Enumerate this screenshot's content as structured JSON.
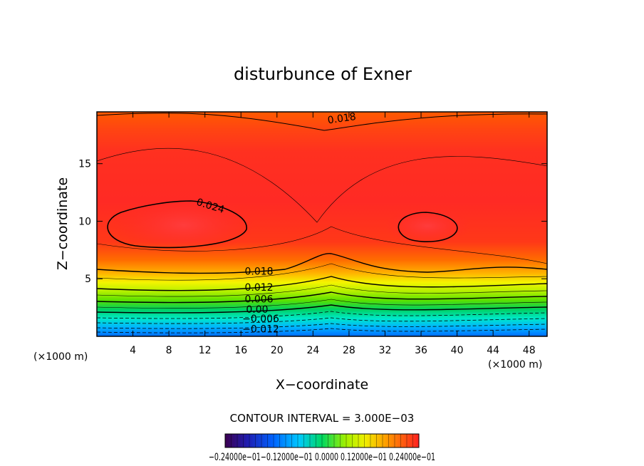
{
  "chart_data": {
    "type": "contour",
    "title": "disturbunce of Exner",
    "xlabel": "X−coordinate",
    "ylabel": "Z−coordinate",
    "x_unit": "(×1000 m)",
    "y_unit": "(×1000 m)",
    "xlim": [
      0,
      50
    ],
    "ylim": [
      0,
      19.5
    ],
    "x_ticks": [
      4,
      8,
      12,
      16,
      20,
      24,
      28,
      32,
      36,
      40,
      44,
      48
    ],
    "y_ticks": [
      5,
      10,
      15
    ],
    "x_tick_labels": [
      "4",
      "8",
      "12",
      "16",
      "20",
      "24",
      "28",
      "32",
      "36",
      "40",
      "44",
      "48"
    ],
    "y_tick_labels": [
      "5",
      "10",
      "15"
    ],
    "contour_interval_text": "CONTOUR INTERVAL = 3.000E−03",
    "contour_interval": 0.003,
    "contour_labels": [
      {
        "text": "0.018",
        "x": 27.2,
        "z": 18.9,
        "angle": -8
      },
      {
        "text": "0.024",
        "x": 12.6,
        "z": 11.3,
        "angle": 17
      },
      {
        "text": "0.018",
        "x": 18.0,
        "z": 5.6,
        "angle": 0
      },
      {
        "text": "0.012",
        "x": 18.0,
        "z": 4.2,
        "angle": 0
      },
      {
        "text": "0.006",
        "x": 18.0,
        "z": 3.2,
        "angle": 0
      },
      {
        "text": "0.00",
        "x": 17.8,
        "z": 2.3,
        "angle": 0
      },
      {
        "text": "−0.006",
        "x": 18.2,
        "z": 1.5,
        "angle": 0
      },
      {
        "text": "−0.012",
        "x": 18.2,
        "z": 0.6,
        "angle": 0
      }
    ],
    "colorbar": {
      "min": -0.024,
      "max": 0.024,
      "label_text": "−0.24000e−01−0.12000e−01 0.0000 0.12000e−01 0.24000e−01"
    }
  }
}
